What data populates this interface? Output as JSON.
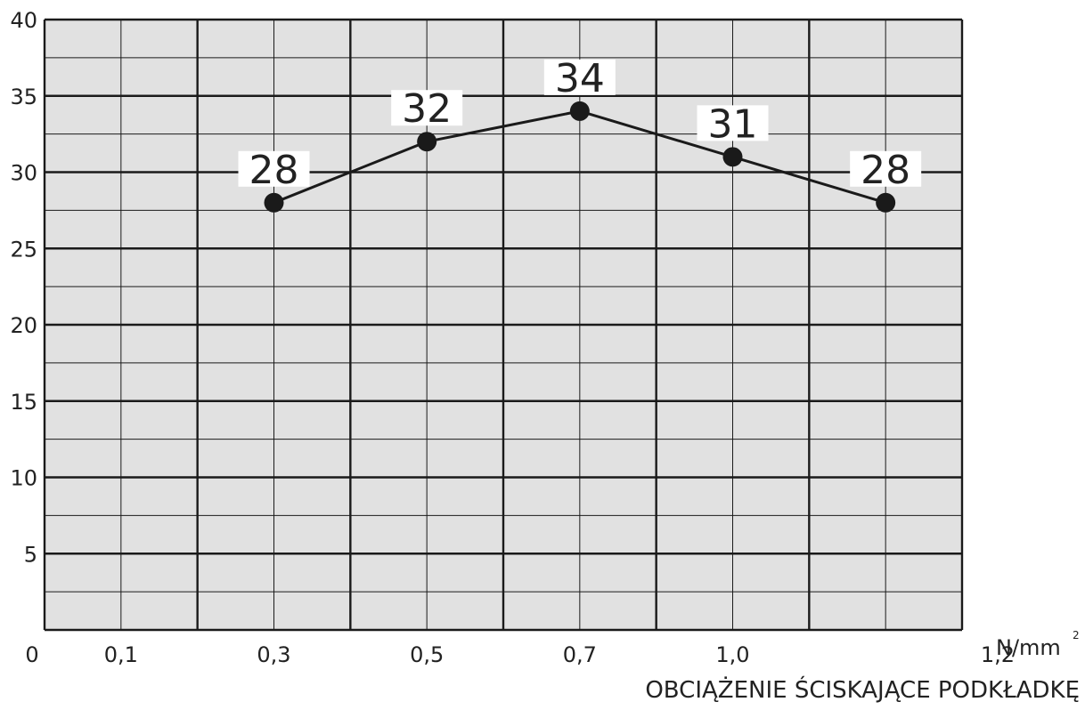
{
  "chart_data": {
    "type": "line",
    "categories": [
      "0,1",
      "0,3",
      "0,5",
      "0,7",
      "1,0"
    ],
    "values": [
      28,
      32,
      34,
      31,
      28
    ],
    "data_labels": [
      "28",
      "32",
      "34",
      "31",
      "28"
    ],
    "x_ticks": [
      "0",
      "0,1",
      "0,3",
      "0,5",
      "0,7",
      "1,0",
      "1,2"
    ],
    "y_ticks": [
      "5",
      "10",
      "15",
      "20",
      "25",
      "30",
      "35",
      "40"
    ],
    "ylim": [
      0,
      40
    ],
    "x_unit": "N/mm",
    "x_unit_superscript": "2",
    "xlabel": "OBCIĄŻENIE ŚCISKAJĄCE PODKŁADKĘ",
    "ylabel": "",
    "grid": true,
    "colors": {
      "plot_background": "#e1e1e1",
      "grid": "#1a1a1a",
      "line": "#1a1a1a",
      "marker": "#1a1a1a"
    }
  }
}
